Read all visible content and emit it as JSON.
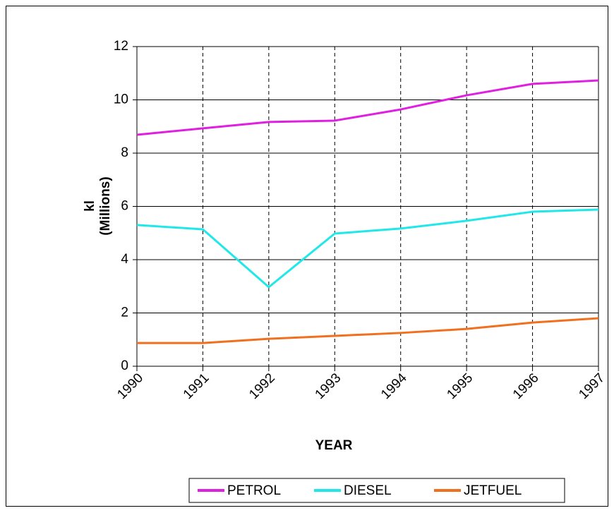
{
  "chart_data": {
    "type": "line",
    "xlabel": "YEAR",
    "ylabel": [
      "kl",
      "(Millions)"
    ],
    "categories": [
      "1990",
      "1991",
      "1992",
      "1993",
      "1994",
      "1995",
      "1996",
      "1997"
    ],
    "series": [
      {
        "name": "PETROL",
        "color": "#e020e0",
        "values": [
          8.69,
          8.93,
          9.17,
          9.22,
          9.64,
          10.17,
          10.6,
          10.73
        ]
      },
      {
        "name": "DIESEL",
        "color": "#20e8e8",
        "values": [
          5.3,
          5.14,
          2.97,
          4.98,
          5.17,
          5.46,
          5.8,
          5.88
        ]
      },
      {
        "name": "JETFUEL",
        "color": "#f07020",
        "values": [
          0.87,
          0.87,
          1.03,
          1.14,
          1.25,
          1.4,
          1.64,
          1.8
        ]
      }
    ],
    "ylim": [
      0,
      12
    ],
    "yticks": [
      0,
      2,
      4,
      6,
      8,
      10,
      12
    ],
    "grid": true,
    "xgrid_dashed": true,
    "legend": "bottom"
  }
}
